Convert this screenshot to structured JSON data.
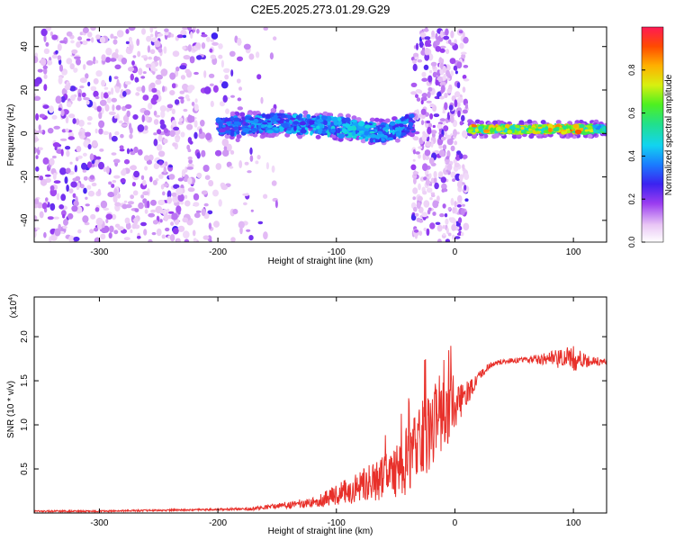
{
  "title": "C2E5.2025.273.01.29.G29",
  "chart_data": [
    {
      "type": "heatmap",
      "xlabel": "Height of straight line (km)",
      "ylabel": "Frequency (Hz)",
      "xlim": [
        -355,
        128
      ],
      "ylim": [
        -50,
        49
      ],
      "xticks": [
        -300,
        -200,
        -100,
        0,
        100
      ],
      "yticks": [
        -40,
        -20,
        0,
        20,
        40
      ],
      "grid": false,
      "colorbar": {
        "label": "Normalized spectral amplitude",
        "range": [
          0,
          1
        ],
        "ticks": [
          0.0,
          0.2,
          0.4,
          0.6,
          0.8
        ],
        "ticklabels": [
          "0.0",
          "0.2",
          "0.4",
          "0.6",
          "0.8"
        ]
      },
      "features": {
        "noise_region_left": [
          -355,
          -150
        ],
        "noise_region_middle": [
          -35,
          10
        ],
        "signal_band": [
          {
            "x": -200,
            "freq": 3,
            "amp": 0.35
          },
          {
            "x": -150,
            "freq": 5,
            "amp": 0.4
          },
          {
            "x": -100,
            "freq": 3,
            "amp": 0.45
          },
          {
            "x": -60,
            "freq": 0,
            "amp": 0.45
          },
          {
            "x": -35,
            "freq": 5,
            "amp": 0.35
          },
          {
            "x": 15,
            "freq": 2,
            "amp": 0.8
          },
          {
            "x": 60,
            "freq": 2,
            "amp": 0.7
          },
          {
            "x": 100,
            "freq": 2,
            "amp": 0.9
          },
          {
            "x": 128,
            "freq": 2,
            "amp": 0.5
          }
        ]
      }
    },
    {
      "type": "line",
      "xlabel": "Height of straight line (km)",
      "ylabel": "SNR (10 * v/v)",
      "yscale_note": "(x10⁴)",
      "yscale_base": "x10",
      "yscale_exp": "4",
      "xlim": [
        -355,
        128
      ],
      "ylim": [
        0,
        2.45
      ],
      "xticks": [
        -300,
        -200,
        -100,
        0,
        100
      ],
      "yticks": [
        0.5,
        1.0,
        1.5,
        2.0
      ],
      "yticklabels": [
        "0.5",
        "1.0",
        "1.5",
        "2.0"
      ],
      "grid": false,
      "series": [
        {
          "color": "#e8302a",
          "x": [
            -355,
            -300,
            -250,
            -200,
            -170,
            -150,
            -120,
            -100,
            -80,
            -60,
            -40,
            -30,
            -20,
            -10,
            0,
            10,
            20,
            30,
            40,
            60,
            80,
            100,
            110,
            128
          ],
          "y": [
            0.02,
            0.02,
            0.03,
            0.04,
            0.05,
            0.08,
            0.12,
            0.2,
            0.3,
            0.4,
            0.55,
            0.8,
            1.0,
            1.1,
            1.2,
            1.35,
            1.55,
            1.68,
            1.72,
            1.74,
            1.75,
            1.75,
            1.72,
            1.72
          ],
          "noise_amp": [
            0.01,
            0.01,
            0.01,
            0.01,
            0.02,
            0.03,
            0.06,
            0.12,
            0.18,
            0.25,
            0.35,
            0.45,
            0.5,
            0.4,
            0.3,
            0.15,
            0.05,
            0.03,
            0.03,
            0.03,
            0.08,
            0.15,
            0.08,
            0.03
          ]
        }
      ]
    }
  ]
}
